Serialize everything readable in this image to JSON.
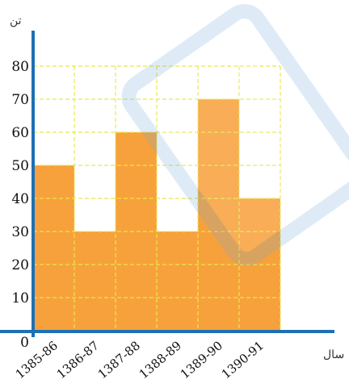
{
  "chart_data": {
    "type": "bar",
    "categories": [
      "1385-86",
      "1386-87",
      "1387-88",
      "1388-89",
      "1389-90",
      "1390-91"
    ],
    "values": [
      50,
      30,
      60,
      30,
      70,
      40
    ],
    "xlabel": "سال",
    "ylabel": "تن",
    "ylim": [
      0,
      80
    ],
    "yticks": [
      0,
      10,
      20,
      30,
      40,
      50,
      60,
      70,
      80
    ],
    "grid": true,
    "colors": {
      "bar": "#F7A13C",
      "grid": "#E8E84A",
      "axis": "#1E6FB5"
    }
  }
}
